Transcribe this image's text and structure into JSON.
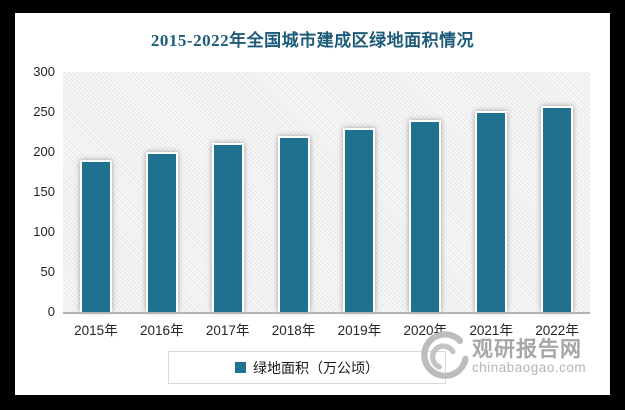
{
  "chart_data": {
    "type": "bar",
    "title": "2015-2022年全国城市建成区绿地面积情况",
    "categories": [
      "2015年",
      "2016年",
      "2017年",
      "2018年",
      "2019年",
      "2020年",
      "2021年",
      "2022年"
    ],
    "series": [
      {
        "name": "绿地面积（万公顷）",
        "values": [
          190,
          200,
          211,
          220,
          230,
          240,
          251,
          258
        ]
      }
    ],
    "xlabel": "",
    "ylabel": "",
    "ylim": [
      0,
      300
    ],
    "y_ticks": [
      300,
      250,
      200,
      150,
      100,
      50,
      0
    ],
    "grid": false,
    "legend_position": "bottom",
    "plot_background": "diagonal-hatch"
  },
  "legend": {
    "label": "绿地面积（万公顷）"
  },
  "watermark": {
    "logo": "swirl-logo",
    "brand": "观研报告网",
    "url": "chinabaogao.com"
  },
  "colors": {
    "bar": "#20708f",
    "title": "#1e5b7a",
    "axis_text": "#262626",
    "axis_line": "#b3b3b3",
    "legend_border": "#d9d9d9",
    "watermark": "#a6a6a6",
    "frame": "#000000"
  }
}
